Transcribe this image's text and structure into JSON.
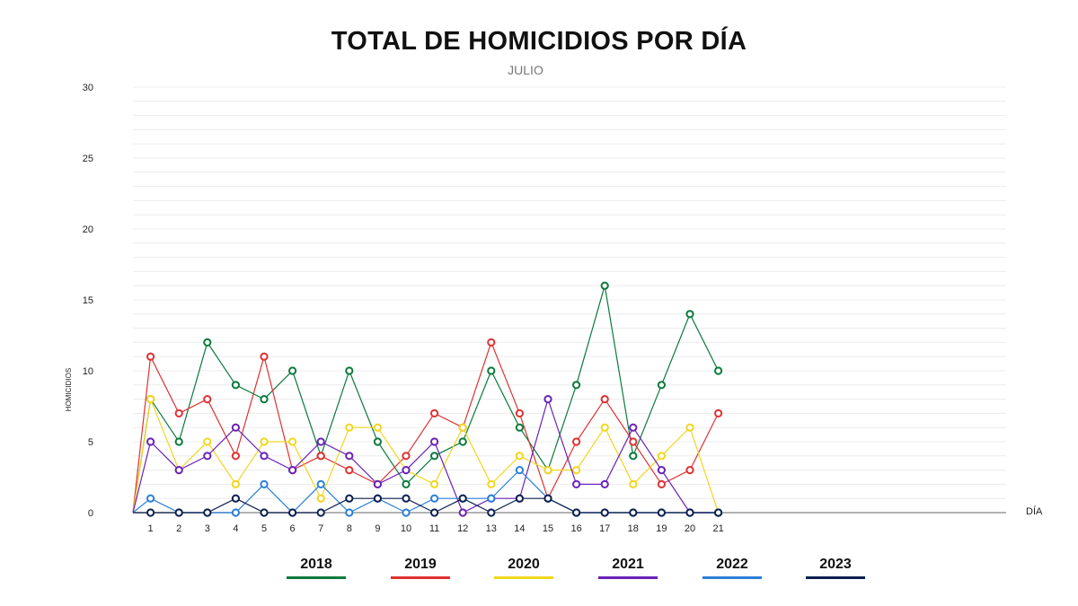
{
  "chart_data": {
    "type": "line",
    "title": "TOTAL DE HOMICIDIOS POR DÍA",
    "subtitle": "JULIO",
    "xlabel": "DÍA",
    "ylabel": "HOMICIDIOS",
    "ylim": [
      0,
      30
    ],
    "yticks": [
      0,
      5,
      10,
      15,
      20,
      25,
      30
    ],
    "categories": [
      "1",
      "2",
      "3",
      "4",
      "5",
      "6",
      "7",
      "8",
      "9",
      "10",
      "11",
      "12",
      "13",
      "14",
      "15",
      "16",
      "17",
      "18",
      "19",
      "20",
      "21"
    ],
    "grid": true,
    "legend": "bottom",
    "series": [
      {
        "name": "2018",
        "color": "#0a7a3c",
        "values": [
          8,
          5,
          12,
          9,
          8,
          10,
          4,
          10,
          5,
          2,
          4,
          5,
          10,
          6,
          3,
          9,
          16,
          4,
          9,
          14,
          10
        ]
      },
      {
        "name": "2019",
        "color": "#e03131",
        "values": [
          11,
          7,
          8,
          4,
          11,
          3,
          4,
          3,
          2,
          4,
          7,
          6,
          12,
          7,
          1,
          5,
          8,
          5,
          2,
          3,
          7
        ]
      },
      {
        "name": "2020",
        "color": "#f2d61e",
        "values": [
          8,
          3,
          5,
          2,
          5,
          5,
          1,
          6,
          6,
          3,
          2,
          6,
          2,
          4,
          3,
          3,
          6,
          2,
          4,
          6,
          0
        ]
      },
      {
        "name": "2021",
        "color": "#6a22b8",
        "values": [
          5,
          3,
          4,
          6,
          4,
          3,
          5,
          4,
          2,
          3,
          5,
          0,
          1,
          1,
          8,
          2,
          2,
          6,
          3,
          0,
          0
        ]
      },
      {
        "name": "2022",
        "color": "#2a7fd9",
        "values": [
          1,
          0,
          0,
          0,
          2,
          0,
          2,
          0,
          1,
          0,
          1,
          1,
          1,
          3,
          1,
          0,
          0,
          0,
          0,
          0,
          0
        ]
      },
      {
        "name": "2023",
        "color": "#0c1f4f",
        "values": [
          0,
          0,
          0,
          1,
          0,
          0,
          0,
          1,
          1,
          1,
          0,
          1,
          0,
          1,
          1,
          0,
          0,
          0,
          0,
          0,
          0
        ]
      }
    ]
  }
}
